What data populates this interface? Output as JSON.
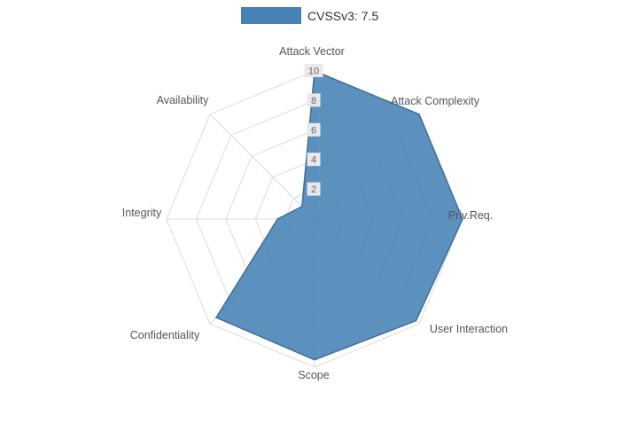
{
  "legend": {
    "label": "CVSSv3: 7.5"
  },
  "chart_data": {
    "type": "radar",
    "title": "",
    "categories": [
      "Attack Vector",
      "Attack Complexity",
      "Priv.Req.",
      "User Interaction",
      "Scope",
      "Confidentiality",
      "Integrity",
      "Availability"
    ],
    "series": [
      {
        "name": "CVSSv3: 7.5",
        "values": [
          10,
          10,
          10,
          9.7,
          9.5,
          9.4,
          2.5,
          1.2
        ]
      }
    ],
    "radial_ticks": [
      2,
      4,
      6,
      8,
      10
    ],
    "range": [
      0,
      10
    ],
    "legend_position": "top",
    "grid": "on",
    "colors": {
      "fill": "#4682B4",
      "line": "#3d6f9c",
      "grid": "#dcdcdc",
      "axis_label": "#555555",
      "tick_label": "#666666",
      "tick_box": "#e9e9e9",
      "legend_text": "#333333"
    }
  }
}
